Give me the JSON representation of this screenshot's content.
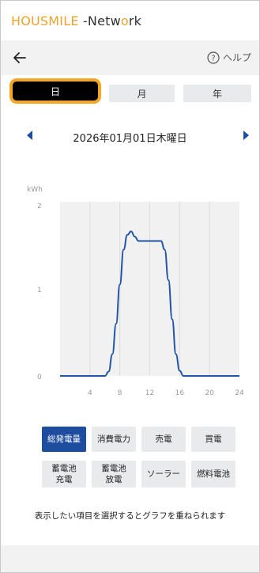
{
  "app": {
    "brand_part1": "HOUSMILE",
    "brand_part2": " -Netw",
    "brand_part3": "o",
    "brand_part4": "rk"
  },
  "nav": {
    "help_label": "ヘルプ"
  },
  "tabs": [
    {
      "label": "日",
      "selected": true
    },
    {
      "label": "月",
      "selected": false
    },
    {
      "label": "年",
      "selected": false
    }
  ],
  "date": {
    "text": "2026年01月01日木曜日"
  },
  "chart_data": {
    "type": "line",
    "ylabel": "kWh",
    "ylim": [
      0,
      2
    ],
    "xlim": [
      0,
      24
    ],
    "y_ticks": [
      "2",
      "1",
      "0"
    ],
    "x_ticks": [
      "4",
      "8",
      "12",
      "16",
      "20",
      "24"
    ],
    "series": [
      {
        "color": "#2155a8",
        "x": [
          0,
          1,
          2,
          3,
          4,
          5,
          6,
          6.5,
          7,
          7.5,
          8,
          8.5,
          9,
          9.5,
          10,
          10.5,
          11,
          11.5,
          12,
          12.5,
          13,
          13.5,
          14,
          14.5,
          15,
          15.5,
          16,
          16.5,
          17,
          18,
          20,
          22,
          24
        ],
        "y": [
          0,
          0,
          0,
          0,
          0,
          0,
          0,
          0.05,
          0.25,
          0.6,
          1.05,
          1.45,
          1.62,
          1.66,
          1.6,
          1.55,
          1.55,
          1.55,
          1.55,
          1.55,
          1.55,
          1.55,
          1.45,
          1.1,
          0.65,
          0.25,
          0.06,
          0,
          0,
          0,
          0,
          0,
          0
        ]
      }
    ]
  },
  "buttons": [
    {
      "label": "総発電量",
      "active": true
    },
    {
      "label": "消費電力",
      "active": false
    },
    {
      "label": "売電",
      "active": false
    },
    {
      "label": "買電",
      "active": false
    },
    {
      "label": "蓄電池\n充電",
      "active": false
    },
    {
      "label": "蓄電池\n放電",
      "active": false
    },
    {
      "label": "ソーラー",
      "active": false
    },
    {
      "label": "燃料電池",
      "active": false
    }
  ],
  "hint": "表示したい項目を選択するとグラフを重ねられます"
}
